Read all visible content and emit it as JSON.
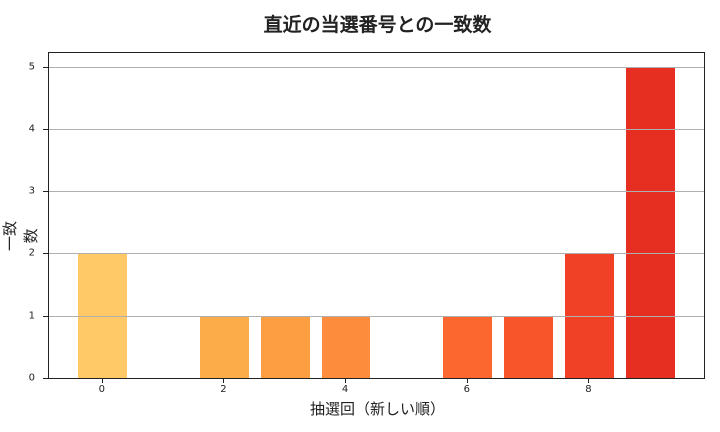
{
  "chart_data": {
    "type": "bar",
    "title": "直近の当選番号との一致数",
    "xlabel": "抽選回（新しい順）",
    "ylabel": "一致数",
    "x": [
      0,
      1,
      2,
      3,
      4,
      5,
      6,
      7,
      8,
      9
    ],
    "values": [
      2,
      0,
      1,
      1,
      1,
      0,
      1,
      1,
      2,
      5
    ],
    "colors": [
      "#fec966",
      "#feb852",
      "#fdac4a",
      "#fd9e43",
      "#fd8d3c",
      "#fc7734",
      "#fc672f",
      "#f9552b",
      "#f04127",
      "#e62e21"
    ],
    "xticks": [
      0,
      2,
      4,
      6,
      8
    ],
    "yticks": [
      0,
      1,
      2,
      3,
      4,
      5
    ],
    "xlim": [
      -0.9,
      9.9
    ],
    "ylim": [
      0,
      5.25
    ],
    "grid": {
      "axis": "y",
      "on": true
    },
    "legend": null
  }
}
